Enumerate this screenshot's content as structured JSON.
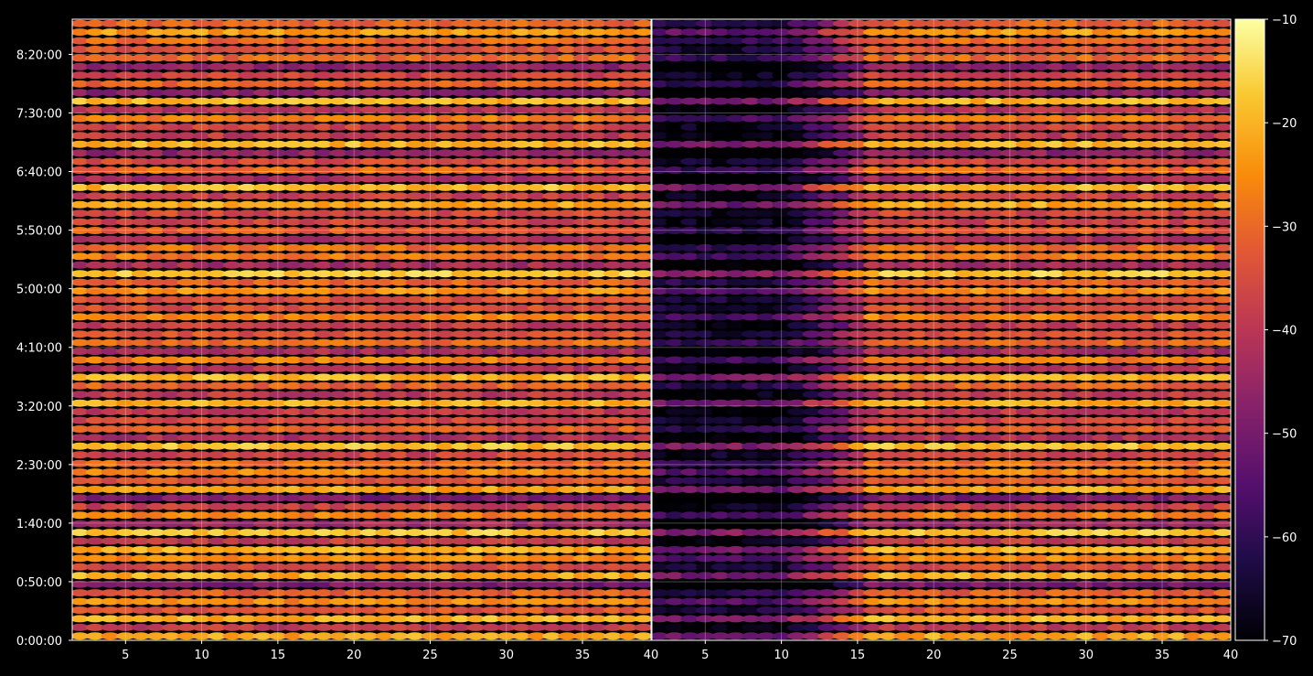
{
  "chart_data": {
    "type": "heatmap",
    "title": "",
    "xlabel": "",
    "ylabel": "",
    "background": "#000000",
    "grid": true,
    "colormap": "inferno",
    "color_scale": {
      "min": -70,
      "max": -10,
      "ticks": [
        "−10",
        "−20",
        "−30",
        "−40",
        "−50",
        "−60",
        "−70"
      ]
    },
    "panels": [
      {
        "name": "left",
        "xlim": [
          1.5,
          39.5
        ],
        "xticks": [
          5,
          10,
          15,
          20,
          25,
          30,
          35
        ],
        "x_start": 2,
        "x_end": 39,
        "row_profile": "left",
        "level_db": [
          -24,
          -36,
          -22,
          -40,
          -28,
          -34,
          -45,
          -26,
          -38,
          -30
        ],
        "level_scale": "near-uniform"
      },
      {
        "name": "right",
        "xlim": [
          1.5,
          39.5
        ],
        "xticks": [
          5,
          10,
          15,
          20,
          25,
          30,
          35
        ],
        "x_start": 2,
        "x_end": 39,
        "row_profile": "right",
        "level_db": [
          -24,
          -36,
          -22,
          -40,
          -28,
          -34,
          -45,
          -26,
          -38,
          -30
        ],
        "level_scale": "attenuated-low-x"
      }
    ],
    "panel_divider_label": "40",
    "right_edge_label": "40",
    "ylim_seconds": [
      0,
      31800
    ],
    "yticks": [
      {
        "label": "0:00:00",
        "seconds": 0
      },
      {
        "label": "0:50:00",
        "seconds": 3000
      },
      {
        "label": "1:40:00",
        "seconds": 6000
      },
      {
        "label": "2:30:00",
        "seconds": 9000
      },
      {
        "label": "3:20:00",
        "seconds": 12000
      },
      {
        "label": "4:10:00",
        "seconds": 15000
      },
      {
        "label": "5:00:00",
        "seconds": 18000
      },
      {
        "label": "5:50:00",
        "seconds": 21000
      },
      {
        "label": "6:40:00",
        "seconds": 24000
      },
      {
        "label": "7:30:00",
        "seconds": 27000
      },
      {
        "label": "8:20:00",
        "seconds": 30000
      }
    ],
    "rows": 72
  }
}
